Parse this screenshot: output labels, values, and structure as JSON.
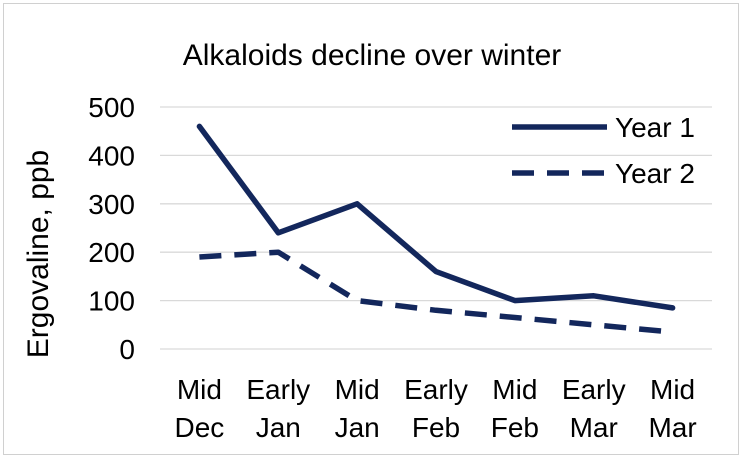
{
  "chart_data": {
    "type": "line",
    "title": "Alkaloids decline over winter",
    "xlabel": "",
    "ylabel": "Ergovaline, ppb",
    "categories": [
      [
        "Mid",
        "Dec"
      ],
      [
        "Early",
        "Jan"
      ],
      [
        "Mid",
        "Jan"
      ],
      [
        "Early",
        "Feb"
      ],
      [
        "Mid",
        "Feb"
      ],
      [
        "Early",
        "Mar"
      ],
      [
        "Mid",
        "Mar"
      ]
    ],
    "ylim": [
      0,
      500
    ],
    "yticks": [
      0,
      100,
      200,
      300,
      400,
      500
    ],
    "grid": true,
    "legend_position": "top-right",
    "series": [
      {
        "name": "Year 1",
        "style": "solid",
        "color": "#13275c",
        "values": [
          460,
          240,
          300,
          160,
          100,
          110,
          85
        ]
      },
      {
        "name": "Year 2",
        "style": "dashed",
        "color": "#13275c",
        "values": [
          190,
          200,
          100,
          80,
          65,
          50,
          35
        ]
      }
    ]
  }
}
